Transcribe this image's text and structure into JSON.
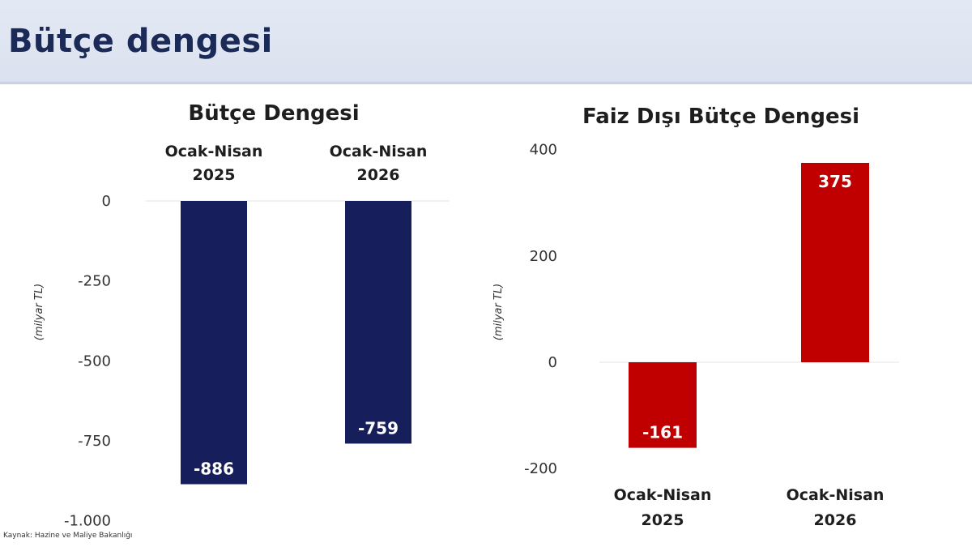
{
  "page": {
    "title": "Bütçe dengesi"
  },
  "source": "Kaynak: Hazine ve Maliye Bakanlığı",
  "chart_data": [
    {
      "type": "bar",
      "title": "Bütçe Dengesi",
      "ylabel": "(milyar TL)",
      "categories": [
        {
          "line1": "Ocak-Nisan",
          "line2": "2025"
        },
        {
          "line1": "Ocak-Nisan",
          "line2": "2026"
        }
      ],
      "values": [
        -886,
        -759
      ],
      "data_labels": [
        "-886",
        "-759"
      ],
      "yticks": [
        0,
        -250,
        -500,
        -750,
        -1000
      ],
      "ytick_labels": [
        "0",
        "-250",
        "-500",
        "-750",
        "-1.000"
      ],
      "ylim": [
        -1000,
        0
      ],
      "category_axis": "top",
      "bar_color": "#161f5c",
      "grid": false
    },
    {
      "type": "bar",
      "title": "Faiz Dışı Bütçe Dengesi",
      "ylabel": "(milyar TL)",
      "categories": [
        {
          "line1": "Ocak-Nisan",
          "line2": "2025"
        },
        {
          "line1": "Ocak-Nisan",
          "line2": "2026"
        }
      ],
      "values": [
        -161,
        375
      ],
      "data_labels": [
        "-161",
        "375"
      ],
      "yticks": [
        400,
        200,
        0,
        -200
      ],
      "ytick_labels": [
        "400",
        "200",
        "0",
        "-200"
      ],
      "ylim": [
        -200,
        400
      ],
      "category_axis": "bottom",
      "bar_color": "#c00000",
      "grid": false
    }
  ]
}
